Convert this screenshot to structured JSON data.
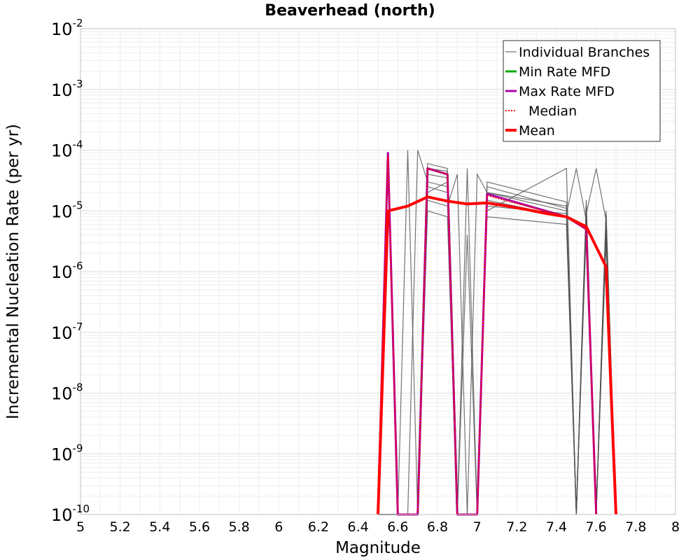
{
  "chart_data": {
    "type": "line",
    "title": "Beaverhead (north)",
    "xlabel": "Magnitude",
    "ylabel": "Incremental Nucleation Rate (per yr)",
    "xlim": [
      5,
      8
    ],
    "ylim_log10": [
      -10,
      -2
    ],
    "y_scale": "log",
    "x_ticks": [
      "5",
      "5.2",
      "5.4",
      "5.6",
      "5.8",
      "6",
      "6.2",
      "6.4",
      "6.6",
      "6.8",
      "7",
      "7.2",
      "7.4",
      "7.6",
      "7.8",
      "8"
    ],
    "y_ticks": [
      {
        "base": "10",
        "exp": "-2"
      },
      {
        "base": "10",
        "exp": "-3"
      },
      {
        "base": "10",
        "exp": "-4"
      },
      {
        "base": "10",
        "exp": "-5"
      },
      {
        "base": "10",
        "exp": "-6"
      },
      {
        "base": "10",
        "exp": "-7"
      },
      {
        "base": "10",
        "exp": "-8"
      },
      {
        "base": "10",
        "exp": "-9"
      },
      {
        "base": "10",
        "exp": "-10"
      }
    ],
    "grid": true,
    "legend_position": "top-right",
    "series": [
      {
        "name": "Individual Branches",
        "color": "#505050",
        "style": "thin",
        "note": "many overlapping logic-tree branches; representative subset",
        "branches": [
          {
            "x": [
              6.5,
              6.55,
              6.6,
              6.65,
              6.7,
              6.75,
              6.85,
              6.9,
              6.95,
              7.0,
              7.05,
              7.45,
              7.5,
              7.55,
              7.6,
              7.65,
              7.7
            ],
            "y": [
              1e-10,
              1e-10,
              1e-10,
              1e-10,
              1e-10,
              6e-05,
              5e-05,
              1e-10,
              1e-10,
              1e-10,
              3e-05,
              1.4e-05,
              1e-10,
              1.2e-05,
              1e-10,
              8e-06,
              1e-10
            ]
          },
          {
            "x": [
              6.5,
              6.55,
              6.6,
              6.65,
              6.7,
              6.75,
              6.85,
              6.9,
              6.95,
              7.0,
              7.05,
              7.45,
              7.5,
              7.55,
              7.6,
              7.65,
              7.7
            ],
            "y": [
              1e-10,
              8e-05,
              1e-10,
              1e-10,
              1e-10,
              4e-05,
              3.5e-05,
              1e-10,
              5e-05,
              1e-10,
              1.5e-05,
              8e-06,
              1e-10,
              6e-06,
              1e-10,
              5e-06,
              1e-10
            ]
          },
          {
            "x": [
              6.5,
              6.55,
              6.6,
              6.65,
              6.7,
              6.75,
              6.85,
              6.9,
              6.95,
              7.0,
              7.05,
              7.45,
              7.5,
              7.55,
              7.6,
              7.65,
              7.7
            ],
            "y": [
              1e-10,
              1e-10,
              1e-10,
              0.0001,
              1e-10,
              2e-05,
              3e-05,
              1e-10,
              1e-10,
              4e-05,
              2e-05,
              1e-05,
              1e-10,
              1e-05,
              1e-10,
              6e-06,
              1e-10
            ]
          },
          {
            "x": [
              6.5,
              6.55,
              6.6,
              6.65,
              6.7,
              6.75,
              6.85,
              6.9,
              6.95,
              7.0,
              7.05,
              7.45,
              7.5,
              7.55,
              7.6,
              7.65,
              7.7
            ],
            "y": [
              1e-10,
              1e-10,
              1e-10,
              1e-10,
              1e-10,
              1.5e-05,
              1.2e-05,
              4e-05,
              1e-10,
              1e-10,
              1.2e-05,
              9e-06,
              5e-05,
              7e-06,
              1e-10,
              4e-06,
              1e-10
            ]
          },
          {
            "x": [
              6.5,
              6.55,
              6.6,
              6.65,
              6.7,
              6.75,
              6.85,
              6.9,
              6.95,
              7.0,
              7.05,
              7.45,
              7.5,
              7.55,
              7.6,
              7.65,
              7.7
            ],
            "y": [
              1e-10,
              1e-10,
              1e-10,
              1e-10,
              0.0001,
              3e-05,
              2.5e-05,
              1e-10,
              1e-10,
              1e-10,
              2.5e-05,
              1.1e-05,
              1e-10,
              9e-06,
              5e-05,
              7e-06,
              1e-10
            ]
          },
          {
            "x": [
              6.5,
              6.55,
              6.6,
              6.65,
              6.7,
              6.75,
              6.85,
              6.9,
              6.95,
              7.0,
              7.05,
              7.45,
              7.5,
              7.55,
              7.6,
              7.65,
              7.7
            ],
            "y": [
              1e-10,
              1e-10,
              1e-10,
              1e-10,
              1e-10,
              2.5e-05,
              2e-05,
              1e-10,
              4e-06,
              1e-10,
              1e-05,
              5e-05,
              1e-10,
              8e-06,
              1e-10,
              9e-06,
              1e-10
            ]
          },
          {
            "x": [
              6.5,
              6.55,
              6.6,
              6.65,
              6.7,
              6.75,
              6.85,
              6.9,
              6.95,
              7.0,
              7.05,
              7.45,
              7.5,
              7.55,
              7.6,
              7.65,
              7.7
            ],
            "y": [
              1e-10,
              1e-10,
              1e-10,
              1e-10,
              1e-10,
              1e-05,
              8e-06,
              1e-10,
              1e-10,
              1e-10,
              8e-06,
              6e-06,
              1e-10,
              5e-06,
              1e-10,
              3e-06,
              1e-10
            ]
          },
          {
            "x": [
              6.5,
              6.55,
              6.6,
              6.65,
              6.7,
              6.75,
              6.85,
              6.9,
              6.95,
              7.0,
              7.05,
              7.45,
              7.5,
              7.55,
              7.6,
              7.65,
              7.7
            ],
            "y": [
              1e-10,
              1e-10,
              1e-10,
              1e-10,
              1e-10,
              5e-05,
              4.5e-05,
              1e-10,
              1e-10,
              1e-10,
              2e-05,
              1.2e-05,
              1e-10,
              1.5e-05,
              1e-10,
              1e-05,
              1e-10
            ]
          }
        ]
      },
      {
        "name": "Min Rate MFD",
        "color": "#00aa00",
        "x": [
          6.7,
          6.75,
          6.85,
          6.9
        ],
        "y": [
          1e-10,
          5e-05,
          4e-05,
          1e-10
        ]
      },
      {
        "name": "Max Rate MFD",
        "color": "#aa00aa",
        "x": [
          6.5,
          6.55,
          6.6,
          6.7,
          6.75,
          6.85,
          6.9,
          6.95,
          7.0,
          7.05,
          7.45,
          7.55,
          7.6
        ],
        "y": [
          1e-10,
          9e-05,
          1e-10,
          1e-10,
          5e-05,
          4e-05,
          1e-10,
          1e-10,
          1e-10,
          1.9e-05,
          8e-06,
          5e-06,
          1e-10
        ]
      },
      {
        "name": "Median",
        "color": "#ff0000",
        "style": "dotted",
        "x": [
          6.5,
          6.55,
          6.6,
          6.7,
          6.75,
          6.85,
          6.9,
          6.95,
          7.0,
          7.05,
          7.45,
          7.55,
          7.6
        ],
        "y": [
          1e-10,
          8e-05,
          1e-10,
          1e-10,
          5e-05,
          4e-05,
          1e-10,
          1e-10,
          1e-10,
          1.8e-05,
          8e-06,
          5e-06,
          1e-10
        ]
      },
      {
        "name": "Mean",
        "color": "#ff0000",
        "style": "thick",
        "x": [
          6.5,
          6.55,
          6.65,
          6.75,
          6.85,
          6.95,
          7.05,
          7.15,
          7.25,
          7.35,
          7.45,
          7.55,
          7.65,
          7.7
        ],
        "y": [
          1e-10,
          1e-05,
          1.2e-05,
          1.7e-05,
          1.45e-05,
          1.3e-05,
          1.35e-05,
          1.2e-05,
          1.05e-05,
          9e-06,
          8e-06,
          5.5e-06,
          1.2e-06,
          1e-10
        ]
      }
    ]
  }
}
